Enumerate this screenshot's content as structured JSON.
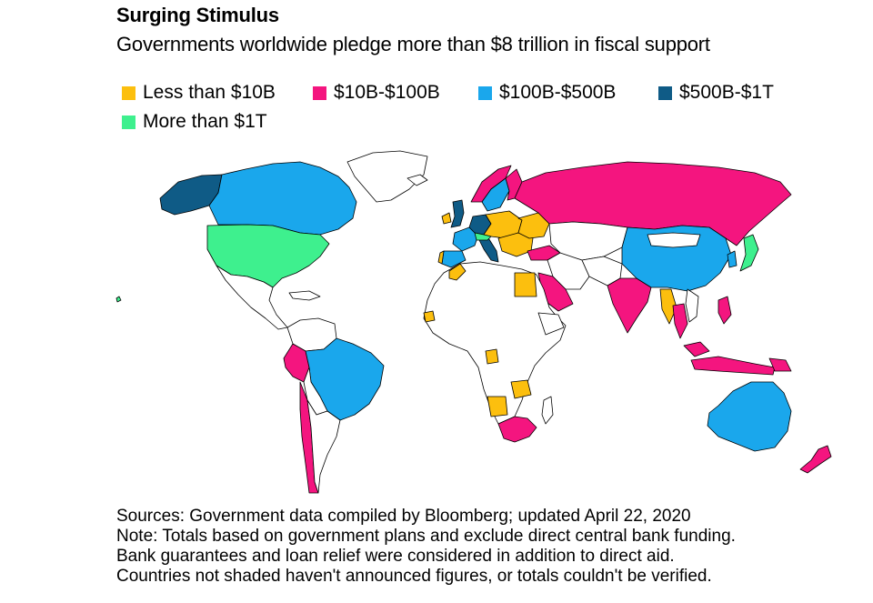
{
  "header": {
    "title": "Surging Stimulus",
    "subtitle": "Governments worldwide pledge more than $8 trillion in fiscal support"
  },
  "legend": {
    "items": [
      {
        "label": "Less than $10B",
        "color": "#fcbf0e"
      },
      {
        "label": "$10B-$100B",
        "color": "#f4157f"
      },
      {
        "label": "$100B-$500B",
        "color": "#1aa7ec"
      },
      {
        "label": "$500B-$1T",
        "color": "#0f5b86"
      },
      {
        "label": "More than $1T",
        "color": "#3ef08e"
      }
    ]
  },
  "map": {
    "unshaded_color": "#ffffff",
    "border_color": "#000000"
  },
  "footer": {
    "lines": [
      "Sources: Government data compiled by Bloomberg; updated April 22, 2020",
      "Note: Totals based on government plans and exclude direct central bank funding.",
      "Bank guarantees and loan relief were considered in addition to direct aid.",
      "Countries not shaded haven't announced figures, or totals couldn't be verified."
    ]
  }
}
